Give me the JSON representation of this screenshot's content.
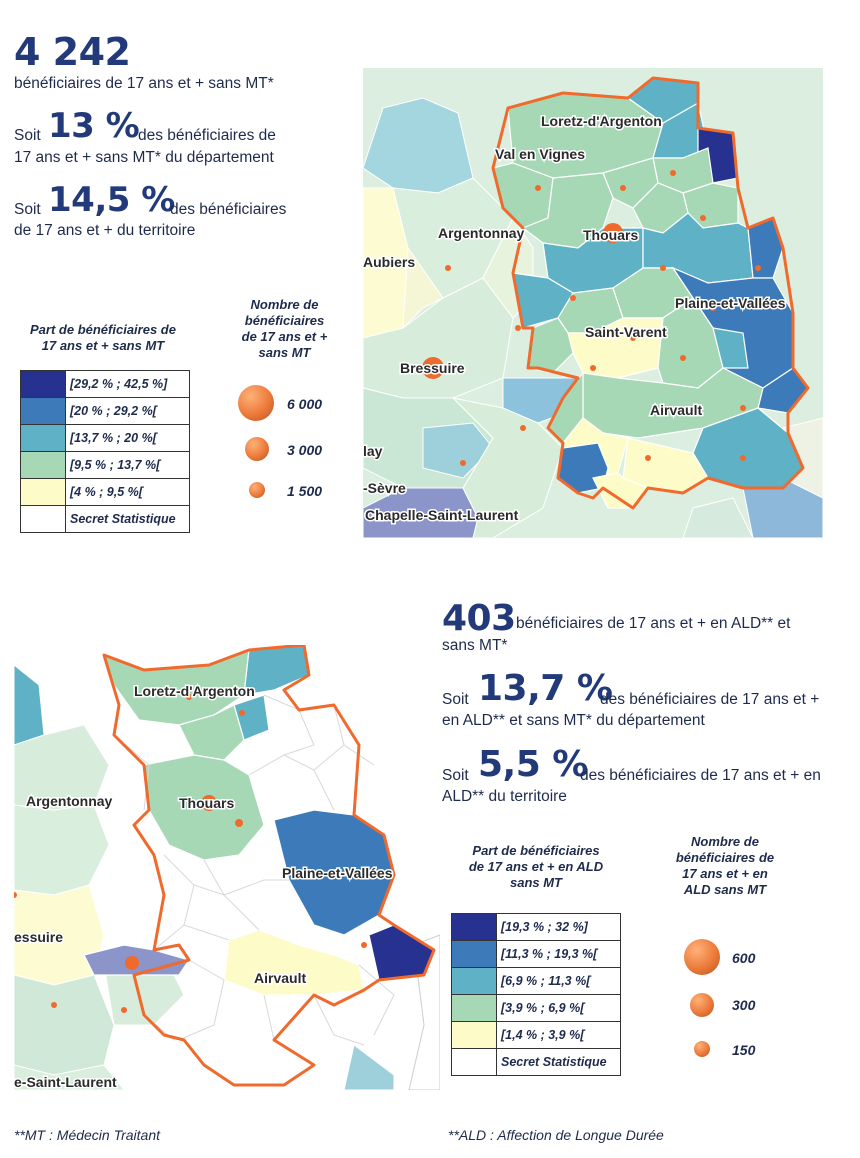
{
  "section1": {
    "count": "4 242",
    "count_desc": "bénéficiaires de 17 ans et + sans MT*",
    "dept_prefix": "Soit",
    "dept_pct": "13 %",
    "dept_desc_a": "des bénéficiaires de",
    "dept_desc_b": "17 ans et + sans MT* du département",
    "terr_prefix": "Soit",
    "terr_pct": "14,5 %",
    "terr_desc_a": "des bénéficiaires",
    "terr_desc_b": "de 17 ans et + du territoire",
    "legend_title_a": "Part de bénéficiaires de",
    "legend_title_b": "17 ans et + sans MT",
    "legend_classes": [
      {
        "label": "[29,2 % ; 42,5 %]",
        "color": "#27318f"
      },
      {
        "label": "[20 % ; 29,2 %[",
        "color": "#3c7ab9"
      },
      {
        "label": "[13,7 % ; 20 %[",
        "color": "#5fb1c6"
      },
      {
        "label": "[9,5 % ; 13,7 %[",
        "color": "#a6d8b6"
      },
      {
        "label": "[4 % ; 9,5 %[",
        "color": "#fdfcc8"
      },
      {
        "label": "Secret Statistique",
        "color": "#ffffff"
      }
    ],
    "bubble_title_a": "Nombre de",
    "bubble_title_b": "bénéficiaires",
    "bubble_title_c": "de 17 ans et +",
    "bubble_title_d": "sans MT",
    "bubbles": [
      "6 000",
      "3 000",
      "1 500"
    ],
    "map_labels": {
      "loretz": "Loretz-d'Argenton",
      "valenvignes": "Val en Vignes",
      "argentonnay": "Argentonnay",
      "thouars": "Thouars",
      "aubiers": "Aubiers",
      "plaine": "Plaine-et-Vallées",
      "saintvarent": "Saint-Varent",
      "bressuire": "Bressuire",
      "airvault": "Airvault",
      "lay": "lay",
      "sevre": "-Sèvre",
      "chapelle": "Chapelle-Saint-Laurent"
    }
  },
  "section2": {
    "count": "403",
    "count_desc_a": "bénéficiaires de 17 ans et + en ALD** et",
    "count_desc_b": "sans MT*",
    "dept_prefix": "Soit",
    "dept_pct": "13,7 %",
    "dept_desc_a": "des bénéficiaires de 17 ans et +",
    "dept_desc_b": "en ALD** et sans MT* du département",
    "terr_prefix": "Soit",
    "terr_pct": "5,5 %",
    "terr_desc_a": "des bénéficiaires de 17 ans et + en",
    "terr_desc_b": "ALD** du territoire",
    "legend_title_a": "Part de bénéficiaires",
    "legend_title_b": "de 17 ans et + en ALD",
    "legend_title_c": "sans MT",
    "legend_classes": [
      {
        "label": "[19,3 % ; 32 %]",
        "color": "#27318f"
      },
      {
        "label": "[11,3 % ; 19,3 %[",
        "color": "#3c7ab9"
      },
      {
        "label": "[6,9 % ; 11,3 %[",
        "color": "#5fb1c6"
      },
      {
        "label": "[3,9 % ; 6,9 %[",
        "color": "#a6d8b6"
      },
      {
        "label": "[1,4 % ; 3,9 %[",
        "color": "#fdfcc8"
      },
      {
        "label": "Secret Statistique",
        "color": "#ffffff"
      }
    ],
    "bubble_title_a": "Nombre de",
    "bubble_title_b": "bénéficiaires de",
    "bubble_title_c": "17 ans et + en",
    "bubble_title_d": "ALD sans MT",
    "bubbles": [
      "600",
      "300",
      "150"
    ],
    "map_labels": {
      "loretz": "Loretz-d'Argenton",
      "argentonnay": "Argentonnay",
      "thouars": "Thouars",
      "plaine": "Plaine-et-Vallées",
      "bressuire": "essuire",
      "airvault": "Airvault",
      "laurent": "e-Saint-Laurent"
    }
  },
  "footnotes": {
    "mt": "**MT : Médecin Traitant",
    "ald": "**ALD : Affection de Longue Durée"
  }
}
